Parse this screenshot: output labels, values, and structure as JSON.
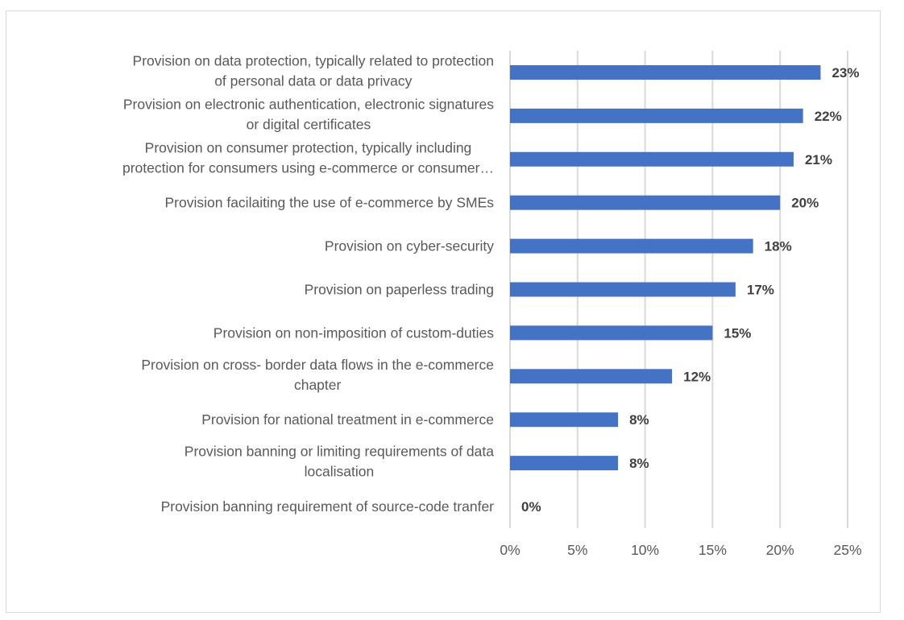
{
  "chart_data": {
    "type": "bar",
    "orientation": "horizontal",
    "title": "",
    "xlabel": "",
    "ylabel": "",
    "xlim": [
      0,
      25
    ],
    "x_ticks": [
      0,
      5,
      10,
      15,
      20,
      25
    ],
    "x_tick_labels": [
      "0%",
      "5%",
      "10%",
      "15%",
      "20%",
      "25%"
    ],
    "grid": true,
    "legend": "none",
    "bar_color": "#4472C4",
    "categories": [
      [
        "Provision on data protection, typically related to protection",
        "of personal data or data privacy"
      ],
      [
        "Provision on electronic authentication, electronic signatures",
        "or digital certificates"
      ],
      [
        "Provision on consumer protection, typically including",
        "protection for consumers using e-commerce or consumer…"
      ],
      [
        "Provision facilaiting the use of e-commerce by SMEs"
      ],
      [
        "Provision on cyber-security"
      ],
      [
        "Provision on paperless trading "
      ],
      [
        "Provision on non-imposition of custom-duties"
      ],
      [
        "Provision on cross- border data flows in the e-commerce",
        "chapter"
      ],
      [
        "Provision for national treatment in e-commerce"
      ],
      [
        "Provision banning or limiting requirements of data",
        "localisation"
      ],
      [
        "Provision banning requirement of source-code tranfer"
      ]
    ],
    "values": [
      23,
      21.7,
      21,
      20,
      18,
      16.7,
      15,
      12,
      8,
      8,
      0
    ],
    "data_labels": [
      "23%",
      "22%",
      "21%",
      "20%",
      "18%",
      "17%",
      "15%",
      "12%",
      "8%",
      "8%",
      "0%"
    ]
  }
}
